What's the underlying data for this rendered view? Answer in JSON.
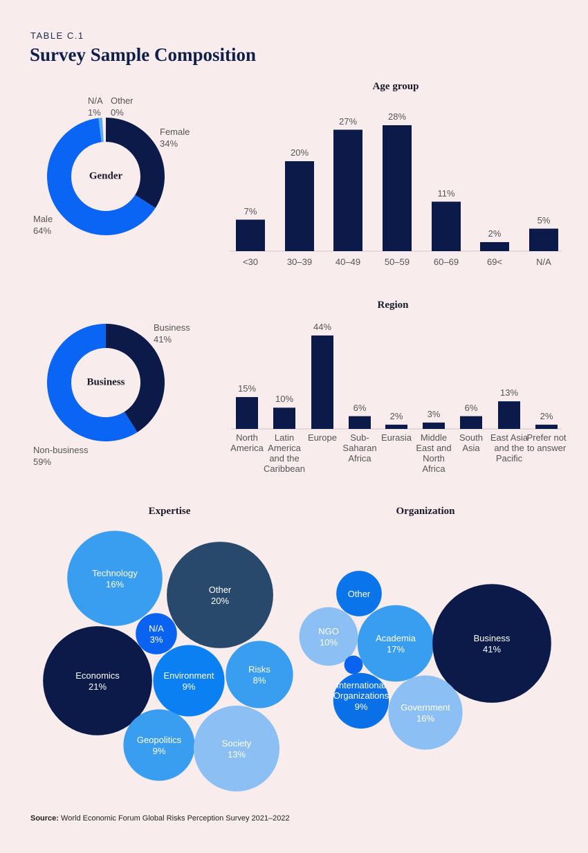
{
  "header": {
    "table_label": "TABLE C.1",
    "title": "Survey Sample Composition"
  },
  "chart_data": [
    {
      "type": "donut",
      "center_label": "Gender",
      "categories": [
        "Female",
        "Male",
        "N/A",
        "Other"
      ],
      "values": [
        34,
        64,
        1,
        0
      ],
      "value_labels": [
        "34%",
        "64%",
        "1%",
        "0%"
      ],
      "colors": [
        "#0b1a48",
        "#0a64f4",
        "#5aaaf5",
        "#8cc0f5"
      ]
    },
    {
      "type": "bar",
      "title": "Age group",
      "categories": [
        "<30",
        "30–39",
        "40–49",
        "50–59",
        "60–69",
        "69<",
        "N/A"
      ],
      "values": [
        7,
        20,
        27,
        28,
        11,
        2,
        5
      ],
      "value_labels": [
        "7%",
        "20%",
        "27%",
        "28%",
        "11%",
        "2%",
        "5%"
      ],
      "color": "#0b1a48"
    },
    {
      "type": "donut",
      "center_label": "Business",
      "categories": [
        "Business",
        "Non-business"
      ],
      "values": [
        41,
        59
      ],
      "value_labels": [
        "41%",
        "59%"
      ],
      "colors": [
        "#0b1a48",
        "#0a64f4"
      ]
    },
    {
      "type": "bar",
      "title": "Region",
      "categories": [
        "North America",
        "Latin America and the Caribbean",
        "Europe",
        "Sub-Saharan Africa",
        "Eurasia",
        "Middle East and North Africa",
        "South Asia",
        "East Asia and the Pacific",
        "Prefer not to answer"
      ],
      "values": [
        15,
        10,
        44,
        6,
        2,
        3,
        6,
        13,
        2
      ],
      "value_labels": [
        "15%",
        "10%",
        "44%",
        "6%",
        "2%",
        "3%",
        "6%",
        "13%",
        "2%"
      ],
      "color": "#0b1a48"
    },
    {
      "type": "bubble",
      "title": "Expertise",
      "categories": [
        "Technology",
        "Other",
        "N/A",
        "Economics",
        "Environment",
        "Risks",
        "Geopolitics",
        "Society"
      ],
      "values": [
        16,
        20,
        3,
        21,
        9,
        8,
        9,
        13
      ],
      "value_labels": [
        "16%",
        "20%",
        "3%",
        "21%",
        "9%",
        "8%",
        "9%",
        "13%"
      ],
      "colors": [
        "#3a9ef0",
        "#29496c",
        "#0a62f0",
        "#0b1a48",
        "#0a80f2",
        "#3a9ef0",
        "#3a9ef0",
        "#8cc0f5"
      ]
    },
    {
      "type": "bubble",
      "title": "Organization",
      "categories": [
        "Other",
        "NGO",
        "Academia",
        "Business",
        null,
        "International Organizations",
        "Government"
      ],
      "values": [
        6,
        10,
        17,
        41,
        1,
        9,
        16
      ],
      "value_labels": [
        null,
        "10%",
        "17%",
        "41%",
        null,
        "9%",
        "16%"
      ],
      "colors": [
        "#0a74ea",
        "#8cc0f5",
        "#3a9ef0",
        "#0b1a48",
        "#0a62f0",
        "#0a70e8",
        "#8cc0f5"
      ]
    }
  ],
  "source": {
    "label": "Source:",
    "text": "World Economic Forum Global Risks Perception Survey 2021–2022"
  }
}
